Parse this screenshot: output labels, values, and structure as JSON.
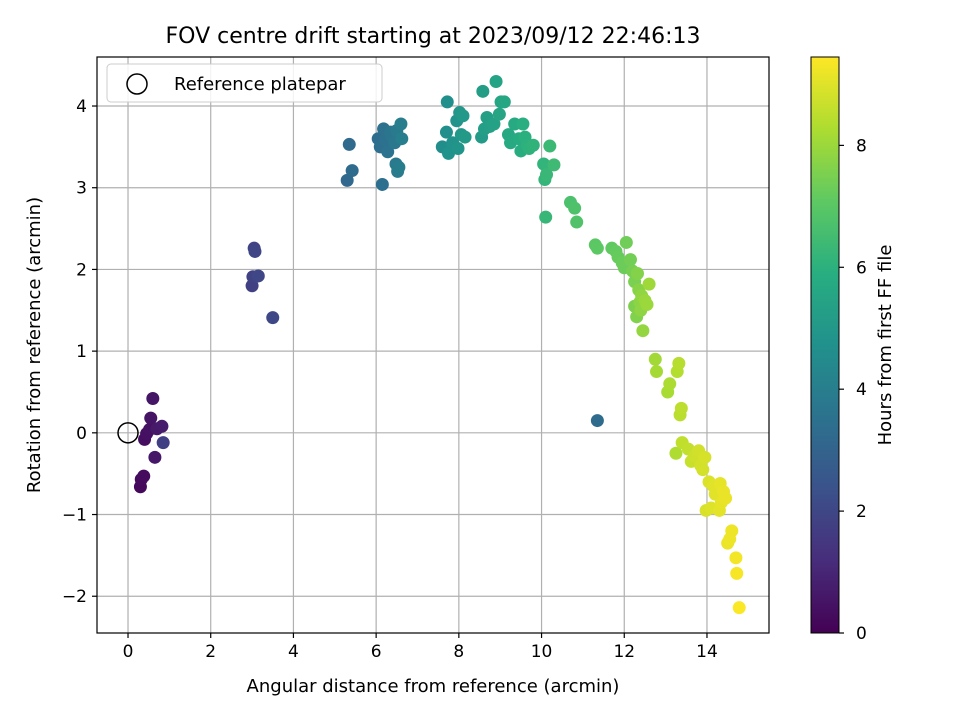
{
  "chart_data": {
    "type": "scatter",
    "title": "FOV centre drift starting at 2023/09/12 22:46:13",
    "xlabel": "Angular distance from reference (arcmin)",
    "ylabel": "Rotation from reference (arcmin)",
    "xlim": [
      -0.75,
      15.5
    ],
    "ylim": [
      -2.45,
      4.6
    ],
    "x_ticks": [
      0,
      2,
      4,
      6,
      8,
      10,
      12,
      14
    ],
    "y_ticks": [
      -2,
      -1,
      0,
      1,
      2,
      3,
      4
    ],
    "grid": true,
    "legend": {
      "location": "upper-left",
      "entries": [
        "Reference platepar"
      ]
    },
    "reference_point": {
      "label": "Reference platepar",
      "x": 0,
      "y": 0
    },
    "colorbar": {
      "label": "Hours from first FF file",
      "min": 0,
      "max": 9.45,
      "ticks": [
        0,
        2,
        4,
        6,
        8
      ],
      "colormap": "viridis"
    },
    "points": [
      [
        0.3,
        -0.66,
        0.2
      ],
      [
        0.32,
        -0.57,
        0.25
      ],
      [
        0.38,
        -0.53,
        0.3
      ],
      [
        0.4,
        -0.08,
        0.35
      ],
      [
        0.45,
        -0.01,
        0.4
      ],
      [
        0.52,
        0.04,
        0.45
      ],
      [
        0.55,
        0.18,
        0.5
      ],
      [
        0.6,
        0.42,
        0.55
      ],
      [
        0.65,
        -0.3,
        0.6
      ],
      [
        0.7,
        0.05,
        0.65
      ],
      [
        0.82,
        0.08,
        0.7
      ],
      [
        0.85,
        -0.12,
        1.75
      ],
      [
        3.0,
        1.8,
        1.8
      ],
      [
        3.02,
        1.91,
        1.85
      ],
      [
        3.05,
        2.26,
        1.9
      ],
      [
        3.07,
        2.22,
        1.95
      ],
      [
        3.15,
        1.92,
        2.0
      ],
      [
        3.5,
        1.41,
        2.05
      ],
      [
        5.3,
        3.09,
        3.2
      ],
      [
        5.35,
        3.53,
        3.25
      ],
      [
        5.42,
        3.21,
        3.3
      ],
      [
        6.05,
        3.6,
        3.35
      ],
      [
        6.1,
        3.5,
        3.4
      ],
      [
        6.15,
        3.04,
        3.45
      ],
      [
        6.18,
        3.72,
        3.5
      ],
      [
        6.22,
        3.58,
        3.55
      ],
      [
        6.28,
        3.44,
        3.6
      ],
      [
        6.35,
        3.68,
        3.65
      ],
      [
        6.4,
        3.62,
        3.7
      ],
      [
        6.45,
        3.55,
        3.75
      ],
      [
        6.48,
        3.29,
        3.8
      ],
      [
        6.5,
        3.7,
        3.85
      ],
      [
        6.52,
        3.2,
        3.9
      ],
      [
        6.55,
        3.25,
        3.95
      ],
      [
        6.6,
        3.78,
        4.0
      ],
      [
        6.62,
        3.6,
        4.05
      ],
      [
        7.6,
        3.5,
        4.6
      ],
      [
        7.7,
        3.68,
        4.65
      ],
      [
        7.72,
        4.05,
        4.7
      ],
      [
        7.75,
        3.42,
        4.75
      ],
      [
        7.85,
        3.55,
        4.8
      ],
      [
        7.95,
        3.82,
        4.85
      ],
      [
        7.98,
        3.48,
        4.9
      ],
      [
        8.02,
        3.92,
        4.95
      ],
      [
        8.06,
        3.65,
        5.0
      ],
      [
        8.1,
        3.88,
        5.05
      ],
      [
        8.15,
        3.62,
        5.1
      ],
      [
        8.55,
        3.62,
        5.15
      ],
      [
        8.58,
        4.18,
        5.2
      ],
      [
        8.62,
        3.72,
        5.25
      ],
      [
        8.68,
        3.86,
        5.3
      ],
      [
        8.75,
        3.75,
        5.35
      ],
      [
        8.85,
        3.78,
        5.4
      ],
      [
        8.9,
        4.3,
        5.45
      ],
      [
        8.98,
        3.9,
        5.5
      ],
      [
        9.02,
        4.05,
        5.55
      ],
      [
        9.1,
        4.05,
        5.6
      ],
      [
        9.2,
        3.65,
        5.65
      ],
      [
        9.25,
        3.55,
        5.7
      ],
      [
        9.35,
        3.78,
        5.75
      ],
      [
        9.45,
        3.6,
        5.8
      ],
      [
        9.5,
        3.45,
        5.85
      ],
      [
        9.55,
        3.78,
        5.9
      ],
      [
        9.6,
        3.62,
        5.95
      ],
      [
        9.65,
        3.52,
        6.0
      ],
      [
        9.7,
        3.48,
        6.05
      ],
      [
        9.8,
        3.52,
        6.1
      ],
      [
        10.05,
        3.29,
        6.15
      ],
      [
        10.08,
        3.1,
        6.2
      ],
      [
        10.1,
        2.64,
        6.25
      ],
      [
        10.12,
        3.16,
        6.3
      ],
      [
        10.2,
        3.51,
        6.35
      ],
      [
        10.3,
        3.28,
        6.4
      ],
      [
        10.7,
        2.82,
        6.7
      ],
      [
        10.8,
        2.75,
        6.75
      ],
      [
        10.85,
        2.58,
        6.8
      ],
      [
        11.3,
        2.3,
        7.0
      ],
      [
        11.35,
        2.26,
        7.05
      ],
      [
        11.35,
        0.15,
        3.3
      ],
      [
        11.7,
        2.26,
        7.1
      ],
      [
        11.8,
        2.22,
        7.15
      ],
      [
        11.85,
        2.15,
        7.2
      ],
      [
        11.95,
        2.08,
        7.25
      ],
      [
        12.0,
        2.02,
        7.3
      ],
      [
        12.05,
        2.33,
        7.35
      ],
      [
        12.15,
        2.12,
        7.4
      ],
      [
        12.2,
        1.98,
        7.45
      ],
      [
        12.25,
        1.85,
        7.5
      ],
      [
        12.25,
        1.55,
        7.55
      ],
      [
        12.3,
        1.42,
        7.6
      ],
      [
        12.32,
        1.95,
        7.65
      ],
      [
        12.35,
        1.75,
        7.7
      ],
      [
        12.38,
        1.6,
        7.75
      ],
      [
        12.4,
        1.5,
        7.8
      ],
      [
        12.42,
        1.68,
        7.85
      ],
      [
        12.45,
        1.25,
        7.9
      ],
      [
        12.5,
        1.62,
        7.95
      ],
      [
        12.55,
        1.57,
        8.0
      ],
      [
        12.6,
        1.82,
        8.05
      ],
      [
        12.75,
        0.9,
        8.1
      ],
      [
        12.78,
        0.75,
        8.15
      ],
      [
        13.05,
        0.5,
        8.2
      ],
      [
        13.1,
        0.6,
        8.25
      ],
      [
        13.25,
        -0.25,
        8.3
      ],
      [
        13.28,
        0.75,
        8.35
      ],
      [
        13.32,
        0.85,
        8.4
      ],
      [
        13.35,
        0.22,
        8.45
      ],
      [
        13.38,
        0.3,
        8.5
      ],
      [
        13.4,
        -0.12,
        8.55
      ],
      [
        13.55,
        -0.2,
        8.6
      ],
      [
        13.62,
        -0.35,
        8.65
      ],
      [
        13.7,
        -0.28,
        8.7
      ],
      [
        13.75,
        -0.3,
        8.75
      ],
      [
        13.8,
        -0.22,
        8.8
      ],
      [
        13.85,
        -0.4,
        8.82
      ],
      [
        13.9,
        -0.45,
        8.85
      ],
      [
        13.95,
        -0.3,
        8.87
      ],
      [
        13.98,
        -0.95,
        8.9
      ],
      [
        14.05,
        -0.6,
        8.95
      ],
      [
        14.1,
        -0.92,
        8.97
      ],
      [
        14.15,
        -0.65,
        9.0
      ],
      [
        14.2,
        -0.75,
        9.02
      ],
      [
        14.25,
        -0.7,
        9.05
      ],
      [
        14.3,
        -0.95,
        9.07
      ],
      [
        14.32,
        -0.62,
        9.1
      ],
      [
        14.35,
        -0.85,
        9.12
      ],
      [
        14.4,
        -0.72,
        9.15
      ],
      [
        14.45,
        -0.8,
        9.17
      ],
      [
        14.5,
        -1.35,
        9.2
      ],
      [
        14.55,
        -1.3,
        9.22
      ],
      [
        14.6,
        -1.2,
        9.25
      ],
      [
        14.7,
        -1.53,
        9.3
      ],
      [
        14.72,
        -1.72,
        9.35
      ],
      [
        14.78,
        -2.14,
        9.4
      ]
    ]
  }
}
